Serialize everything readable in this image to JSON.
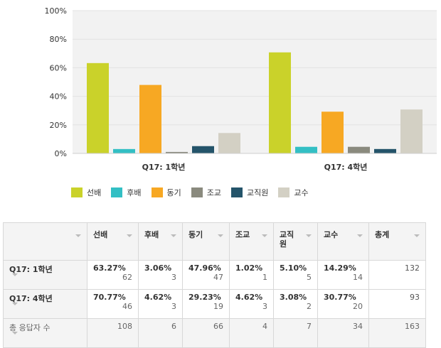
{
  "chart_data": {
    "type": "bar",
    "categories": [
      "Q17: 1학년",
      "Q17: 4학년"
    ],
    "series": [
      {
        "name": "선배",
        "color": "#cad22a",
        "values": [
          63.27,
          70.77
        ]
      },
      {
        "name": "후배",
        "color": "#33bfc4",
        "values": [
          3.06,
          4.62
        ]
      },
      {
        "name": "동기",
        "color": "#f7a823",
        "values": [
          47.96,
          29.23
        ]
      },
      {
        "name": "조교",
        "color": "#8a8a7e",
        "values": [
          1.02,
          4.62
        ]
      },
      {
        "name": "교직원",
        "color": "#24546a",
        "values": [
          5.1,
          3.08
        ]
      },
      {
        "name": "교수",
        "color": "#d3d0c4",
        "values": [
          14.29,
          30.77
        ]
      }
    ],
    "yticks": [
      "100%",
      "80%",
      "60%",
      "40%",
      "20%",
      "0%"
    ],
    "ylim": [
      0,
      100
    ],
    "grid": true,
    "legend": "bottom"
  },
  "table": {
    "headers": [
      "선배",
      "후배",
      "동기",
      "조교",
      "교직원",
      "교수",
      "총계"
    ],
    "rows": [
      {
        "label": "Q17: 1학년",
        "cells": [
          [
            "63.27%",
            "62"
          ],
          [
            "3.06%",
            "3"
          ],
          [
            "47.96%",
            "47"
          ],
          [
            "1.02%",
            "1"
          ],
          [
            "5.10%",
            "5"
          ],
          [
            "14.29%",
            "14"
          ]
        ],
        "total": "132"
      },
      {
        "label": "Q17: 4학년",
        "cells": [
          [
            "70.77%",
            "46"
          ],
          [
            "4.62%",
            "3"
          ],
          [
            "29.23%",
            "19"
          ],
          [
            "4.62%",
            "3"
          ],
          [
            "3.08%",
            "2"
          ],
          [
            "30.77%",
            "20"
          ]
        ],
        "total": "93"
      }
    ],
    "totals": {
      "label": "총 응답자 수",
      "values": [
        "108",
        "6",
        "66",
        "4",
        "7",
        "34",
        "163"
      ]
    }
  }
}
